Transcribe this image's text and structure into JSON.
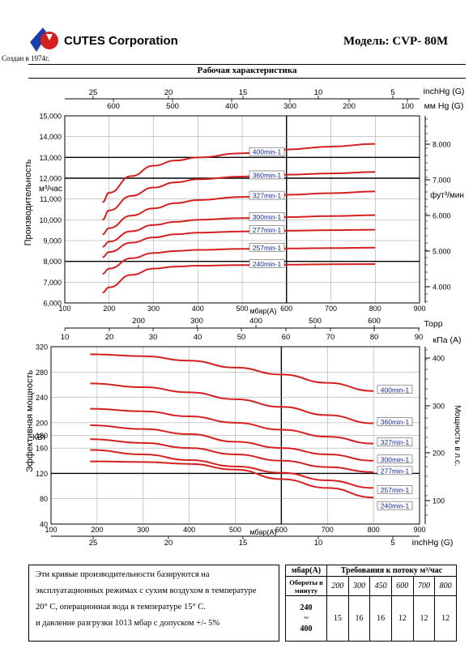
{
  "header": {
    "company": "CUTES Corporation",
    "since": "Создан в 1974г.",
    "model": "Модель: CVP- 80M",
    "section_title": "Рабочая характеристика"
  },
  "colors": {
    "curve": "#d42020",
    "label_text": "#1a2a9a",
    "grid": "#9a9a9a",
    "logo_blue": "#1a3fa8",
    "logo_red": "#d42020"
  },
  "top_axis": {
    "inhg_label": "inchHg (G)",
    "inhg_ticks": [
      "25",
      "20",
      "15",
      "10",
      "5"
    ],
    "mmhg_label": "мм Hg (G)",
    "mmhg_ticks": [
      "600",
      "500",
      "400",
      "300",
      "200",
      "100"
    ],
    "torr_label": "Торр",
    "torr_ticks": [
      "200",
      "300",
      "400",
      "500",
      "600"
    ],
    "kpa_label": "кПа (A)",
    "kpa_ticks": [
      "10",
      "20",
      "30",
      "40",
      "50",
      "60",
      "70",
      "80",
      "90"
    ],
    "bottom_inhg_label": "inchHg (G)",
    "bottom_inhg_ticks": [
      "25",
      "20",
      "15",
      "10",
      "5"
    ]
  },
  "chart_data": [
    {
      "type": "line",
      "xlabel": "мбар(A)",
      "ylabel": "Производительность",
      "yunit": "м³/час",
      "y2label": "фут³/мин",
      "xlim": [
        100,
        900
      ],
      "ylim": [
        6000,
        15000
      ],
      "xticks": [
        100,
        200,
        300,
        400,
        500,
        600,
        700,
        800,
        900
      ],
      "yticks": [
        6000,
        7000,
        8000,
        9000,
        10000,
        11000,
        12000,
        13000,
        14000,
        15000
      ],
      "ytick_labels": [
        "6,000",
        "7,000",
        "8,000",
        "9,000",
        "10,000",
        "11,000",
        "12,000",
        "13,000",
        "14,000",
        "15,000"
      ],
      "y2ticks": [
        "4.000",
        "5.000",
        "6.000",
        "7.000",
        "8.000"
      ],
      "x": [
        185,
        200,
        250,
        300,
        350,
        400,
        500,
        600,
        700,
        800
      ],
      "series": [
        {
          "name": "400min-1",
          "values": [
            10850,
            11300,
            12100,
            12600,
            12850,
            13000,
            13200,
            13380,
            13520,
            13650
          ]
        },
        {
          "name": "360min-1",
          "values": [
            10000,
            10450,
            11150,
            11550,
            11800,
            11950,
            12080,
            12170,
            12230,
            12300
          ]
        },
        {
          "name": "327min-1",
          "values": [
            9300,
            9600,
            10200,
            10550,
            10800,
            10950,
            11100,
            11200,
            11280,
            11360
          ]
        },
        {
          "name": "300min-1",
          "values": [
            8700,
            8950,
            9450,
            9750,
            9900,
            10000,
            10080,
            10130,
            10180,
            10220
          ]
        },
        {
          "name": "277min-1",
          "values": [
            8200,
            8450,
            8900,
            9150,
            9300,
            9380,
            9440,
            9470,
            9500,
            9520
          ]
        },
        {
          "name": "257min-1",
          "values": [
            7400,
            7650,
            8150,
            8400,
            8500,
            8550,
            8600,
            8620,
            8640,
            8660
          ]
        },
        {
          "name": "240min-1",
          "values": [
            6500,
            6750,
            7350,
            7650,
            7750,
            7790,
            7820,
            7840,
            7860,
            7870
          ]
        }
      ]
    },
    {
      "type": "line",
      "xlabel": "мбар(A)",
      "ylabel": "Эффективная мощность",
      "yunit": "КВт",
      "y2label": "Мощность в л.с.",
      "xlim": [
        100,
        900
      ],
      "ylim": [
        40,
        320
      ],
      "xticks": [
        100,
        200,
        300,
        400,
        500,
        600,
        700,
        800,
        900
      ],
      "yticks": [
        40,
        80,
        120,
        160,
        180,
        200,
        240,
        280,
        320
      ],
      "ytick_labels": [
        "40",
        "80",
        "120",
        "160",
        "180",
        "200",
        "240",
        "280",
        "320"
      ],
      "y2ticks": [
        "100",
        "200",
        "300",
        "400"
      ],
      "x": [
        185,
        300,
        400,
        500,
        600,
        700,
        800
      ],
      "series": [
        {
          "name": "400min-1",
          "values": [
            308,
            305,
            298,
            287,
            276,
            263,
            250
          ]
        },
        {
          "name": "360min-1",
          "values": [
            262,
            256,
            248,
            237,
            225,
            212,
            199
          ]
        },
        {
          "name": "327min-1",
          "values": [
            222,
            218,
            210,
            200,
            189,
            178,
            167
          ]
        },
        {
          "name": "300min-1",
          "values": [
            196,
            190,
            182,
            170,
            160,
            150,
            140
          ]
        },
        {
          "name": "277min-1",
          "values": [
            174,
            168,
            160,
            150,
            140,
            130,
            122
          ]
        },
        {
          "name": "257min-1",
          "values": [
            157,
            150,
            141,
            131,
            121,
            109,
            97
          ]
        },
        {
          "name": "240min-1",
          "values": [
            139,
            138,
            135,
            126,
            111,
            97,
            82
          ]
        }
      ]
    }
  ],
  "note": {
    "line1": "Эти кривые производительности базируются на",
    "line2": "эксплуатационных режимах с сухим воздухом в температуре",
    "line3": "20° С, операционная вода в температуре 15° С.",
    "line4": "и давление разгрузки 1013 мбар с допуском +/- 5%"
  },
  "flow_table": {
    "col1_header": "мбар(A)",
    "title": "Требования к потоку м³/час",
    "row_label": "Обороты в минуту",
    "pressures": [
      "200",
      "300",
      "450",
      "600",
      "700",
      "800"
    ],
    "rpm_from": "240",
    "rpm_sep": "~",
    "rpm_to": "400",
    "values": [
      "15",
      "16",
      "16",
      "12",
      "12",
      "12"
    ]
  }
}
